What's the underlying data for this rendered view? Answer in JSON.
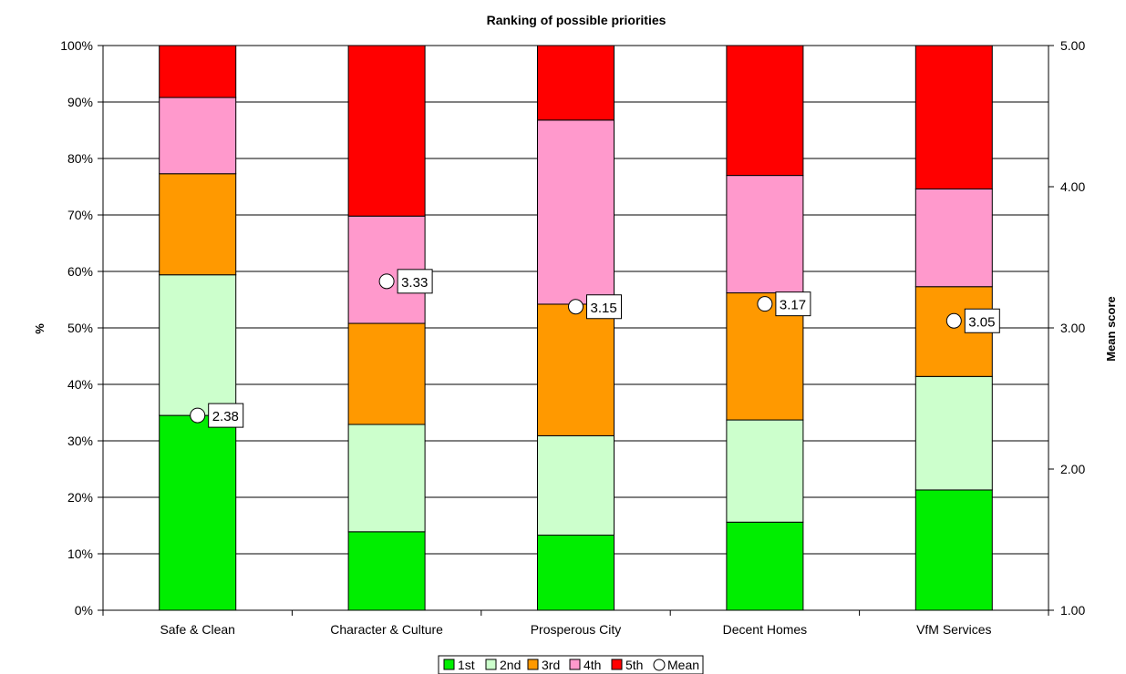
{
  "chart_data": {
    "type": "bar",
    "stacked": true,
    "title": "Ranking of possible priorities",
    "ylabel": "%",
    "y2label": "Mean score",
    "categories": [
      "Safe & Clean",
      "Character & Culture",
      "Prosperous City",
      "Decent Homes",
      "VfM Services"
    ],
    "ylim": [
      0,
      100
    ],
    "y2lim": [
      1.0,
      5.0
    ],
    "yticks": [
      "0%",
      "10%",
      "20%",
      "30%",
      "40%",
      "50%",
      "60%",
      "70%",
      "80%",
      "90%",
      "100%"
    ],
    "y2ticks": [
      "1.00",
      "2.00",
      "3.00",
      "4.00",
      "5.00"
    ],
    "series": [
      {
        "name": "1st",
        "color": "#00ee00",
        "values": [
          34.5,
          13.9,
          13.3,
          15.6,
          21.3
        ]
      },
      {
        "name": "2nd",
        "color": "#ccffcc",
        "values": [
          24.9,
          19.0,
          17.6,
          18.1,
          20.1
        ]
      },
      {
        "name": "3rd",
        "color": "#ff9900",
        "values": [
          17.9,
          17.9,
          23.3,
          22.5,
          15.9
        ]
      },
      {
        "name": "4th",
        "color": "#ff99cc",
        "values": [
          13.5,
          19.0,
          32.6,
          20.8,
          17.3
        ]
      },
      {
        "name": "5th",
        "color": "#ff0000",
        "values": [
          9.2,
          30.2,
          13.2,
          23.0,
          25.4
        ]
      }
    ],
    "mean": {
      "name": "Mean",
      "values": [
        2.38,
        3.33,
        3.15,
        3.17,
        3.05
      ],
      "labels": [
        "2.38",
        "3.33",
        "3.15",
        "3.17",
        "3.05"
      ]
    },
    "grid": true,
    "legend": "bottom"
  }
}
